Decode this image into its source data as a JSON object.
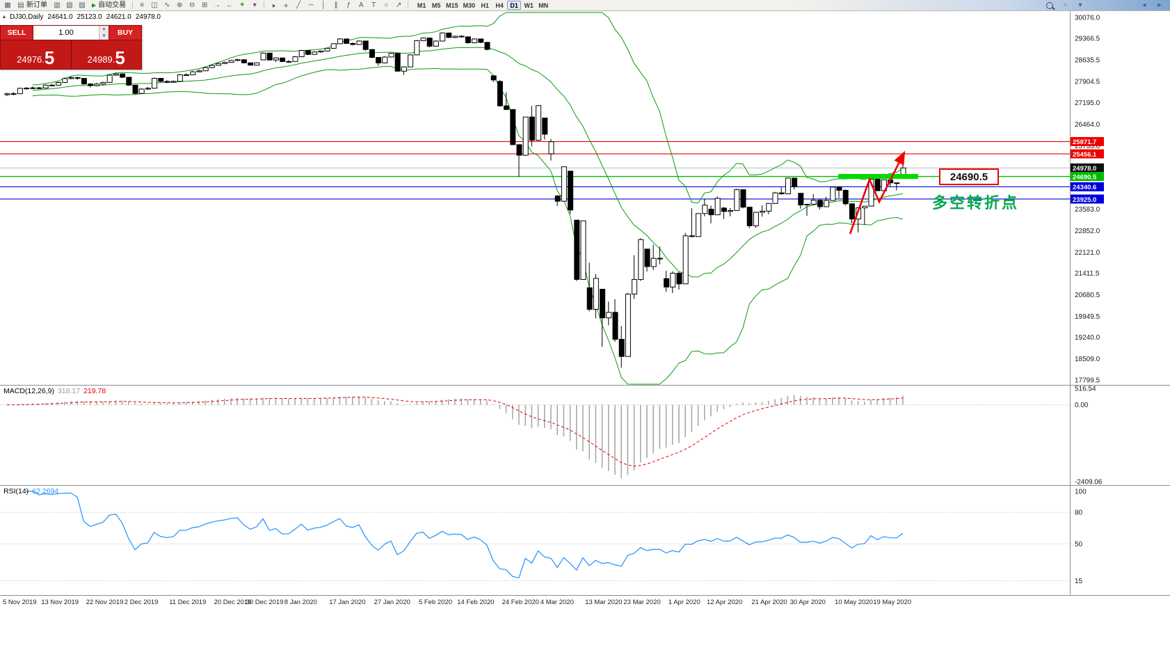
{
  "toolbar": {
    "new_order_label": "新订单",
    "autotrading_label": "自动交易",
    "timeframes": [
      "M1",
      "M5",
      "M15",
      "M30",
      "H1",
      "H4",
      "D1",
      "W1",
      "MN"
    ],
    "active_timeframe": "D1"
  },
  "symbol_info": {
    "title": "DJ30,Daily",
    "open": "24641.0",
    "high": "25123.0",
    "low": "24621.0",
    "close": "24978.0"
  },
  "trade_panel": {
    "sell_label": "SELL",
    "buy_label": "BUY",
    "volume": "1.00",
    "sell_price_int": "24976.",
    "sell_price_frac": "5",
    "buy_price_int": "24989.",
    "buy_price_frac": "5"
  },
  "price_axis": {
    "labels": [
      {
        "text": "30076.0",
        "price": 30076.0
      },
      {
        "text": "29366.5",
        "price": 29366.5
      },
      {
        "text": "28635.5",
        "price": 28635.5
      },
      {
        "text": "27904.5",
        "price": 27904.5
      },
      {
        "text": "27195.0",
        "price": 27195.0
      },
      {
        "text": "26464.0",
        "price": 26464.0
      },
      {
        "text": "25733.0",
        "price": 25733.0
      },
      {
        "text": "23583.0",
        "price": 23583.0
      },
      {
        "text": "22852.0",
        "price": 22852.0
      },
      {
        "text": "22121.0",
        "price": 22121.0
      },
      {
        "text": "21411.5",
        "price": 21411.5
      },
      {
        "text": "20680.5",
        "price": 20680.5
      },
      {
        "text": "19949.5",
        "price": 19949.5
      },
      {
        "text": "19240.0",
        "price": 19240.0
      },
      {
        "text": "18509.0",
        "price": 18509.0
      },
      {
        "text": "17799.5",
        "price": 17799.5
      }
    ],
    "tags": [
      {
        "text": "25871.7",
        "price": 25871.7,
        "bg": "#ee0000",
        "line": "#ee0000"
      },
      {
        "text": "25456.1",
        "price": 25456.1,
        "bg": "#ee0000",
        "line": "#ee0000"
      },
      {
        "text": "24978.0",
        "price": 24978.0,
        "bg": "#101010",
        "line": "#c0c0c0"
      },
      {
        "text": "24690.5",
        "price": 24690.5,
        "bg": "#00bb00",
        "line": "#00bb00"
      },
      {
        "text": "24340.6",
        "price": 24340.6,
        "bg": "#0000dd",
        "line": "#0000dd"
      },
      {
        "text": "23925.0",
        "price": 23925.0,
        "bg": "#0000dd",
        "line": "#0000dd"
      }
    ]
  },
  "annotations": {
    "level_label": "24690.5",
    "turning_point_text": "多空转折点"
  },
  "macd_panel": {
    "name": "MACD(12,26,9)",
    "macd_value": "318.17",
    "signal_value": "219.78",
    "axis": [
      {
        "text": "516.54",
        "value": 516.54
      },
      {
        "text": "0.00",
        "value": 0
      },
      {
        "text": "-2409.06",
        "value": -2409.06
      }
    ]
  },
  "rsi_panel": {
    "name": "RSI(14)",
    "value": "62.2694",
    "levels": [
      80,
      50,
      15
    ],
    "axis": [
      {
        "text": "100",
        "value": 100
      },
      {
        "text": "80",
        "value": 80
      },
      {
        "text": "50",
        "value": 50
      },
      {
        "text": "15",
        "value": 15
      }
    ]
  },
  "chart_data": {
    "type": "candlestick",
    "symbol": "DJ30",
    "timeframe": "Daily",
    "grid": false,
    "visible_price_range": [
      17630,
      30290
    ],
    "last_ohlc": {
      "open": 24641.0,
      "high": 25123.0,
      "low": 24621.0,
      "close": 24978.0
    },
    "key_levels": {
      "resistance": [
        25871.7,
        25456.1
      ],
      "last_price": 24978.0,
      "support_zone": 24690.5,
      "supports": [
        24340.6,
        23925.0
      ]
    },
    "overlays": [
      {
        "name": "Bollinger Bands",
        "period": 20,
        "deviation": 2,
        "color": "#0a9a0a"
      }
    ],
    "sub_indicators": [
      {
        "name": "MACD",
        "params": [
          12,
          26,
          9
        ],
        "current": [
          318.17,
          219.78
        ],
        "range": [
          -2409.06,
          516.54
        ]
      },
      {
        "name": "RSI",
        "params": [
          14
        ],
        "current": 62.2694,
        "range": [
          0,
          100
        ]
      }
    ],
    "date_labels": [
      {
        "t": "5 Nov 2019",
        "i": 0
      },
      {
        "t": "13 Nov 2019",
        "i": 6
      },
      {
        "t": "22 Nov 2019",
        "i": 13
      },
      {
        "t": "2 Dec 2019",
        "i": 19
      },
      {
        "t": "11 Dec 2019",
        "i": 26
      },
      {
        "t": "20 Dec 2019",
        "i": 33
      },
      {
        "t": "30 Dec 2019",
        "i": 38
      },
      {
        "t": "8 Jan 2020",
        "i": 44
      },
      {
        "t": "17 Jan 2020",
        "i": 51
      },
      {
        "t": "27 Jan 2020",
        "i": 58
      },
      {
        "t": "5 Feb 2020",
        "i": 65
      },
      {
        "t": "14 Feb 2020",
        "i": 71
      },
      {
        "t": "24 Feb 2020",
        "i": 78
      },
      {
        "t": "4 Mar 2020",
        "i": 84
      },
      {
        "t": "13 Mar 2020",
        "i": 91
      },
      {
        "t": "23 Mar 2020",
        "i": 97
      },
      {
        "t": "1 Apr 2020",
        "i": 104
      },
      {
        "t": "12 Apr 2020",
        "i": 110
      },
      {
        "t": "21 Apr 2020",
        "i": 117
      },
      {
        "t": "30 Apr 2020",
        "i": 123
      },
      {
        "t": "10 May 2020",
        "i": 130
      },
      {
        "t": "19 May 2020",
        "i": 136
      }
    ],
    "candles": [
      [
        27460,
        27520,
        27410,
        27492
      ],
      [
        27492,
        27550,
        27440,
        27493
      ],
      [
        27493,
        27700,
        27480,
        27675
      ],
      [
        27675,
        27720,
        27630,
        27681
      ],
      [
        27681,
        27740,
        27650,
        27691
      ],
      [
        27691,
        27730,
        27640,
        27684
      ],
      [
        27684,
        27810,
        27670,
        27784
      ],
      [
        27784,
        27820,
        27740,
        27782
      ],
      [
        27782,
        27900,
        27770,
        27872
      ],
      [
        27872,
        28040,
        27860,
        28005
      ],
      [
        28005,
        28090,
        27980,
        28036
      ],
      [
        28036,
        28070,
        27960,
        28012
      ],
      [
        28012,
        28020,
        27800,
        27822
      ],
      [
        27822,
        27850,
        27700,
        27767
      ],
      [
        27767,
        27860,
        27740,
        27822
      ],
      [
        27822,
        27900,
        27790,
        27876
      ],
      [
        27876,
        28150,
        27860,
        28121
      ],
      [
        28121,
        28200,
        28100,
        28164
      ],
      [
        28164,
        28180,
        28020,
        28051
      ],
      [
        28051,
        28060,
        27760,
        27783
      ],
      [
        27783,
        27800,
        27460,
        27503
      ],
      [
        27503,
        27680,
        27480,
        27650
      ],
      [
        27650,
        27720,
        27620,
        27678
      ],
      [
        27678,
        28040,
        27660,
        28015
      ],
      [
        28015,
        28030,
        27880,
        27910
      ],
      [
        27910,
        27950,
        27850,
        27882
      ],
      [
        27882,
        27940,
        27860,
        27912
      ],
      [
        27912,
        28160,
        27900,
        28132
      ],
      [
        28132,
        28180,
        28100,
        28135
      ],
      [
        28135,
        28270,
        28120,
        28235
      ],
      [
        28235,
        28300,
        28220,
        28268
      ],
      [
        28268,
        28410,
        28260,
        28377
      ],
      [
        28377,
        28480,
        28360,
        28455
      ],
      [
        28455,
        28540,
        28440,
        28515
      ],
      [
        28515,
        28580,
        28500,
        28552
      ],
      [
        28552,
        28640,
        28540,
        28617
      ],
      [
        28617,
        28680,
        28600,
        28645
      ],
      [
        28645,
        28660,
        28520,
        28538
      ],
      [
        28538,
        28550,
        28440,
        28462
      ],
      [
        28462,
        28560,
        28450,
        28538
      ],
      [
        28638,
        28890,
        28630,
        28869
      ],
      [
        28869,
        28880,
        28620,
        28635
      ],
      [
        28635,
        28720,
        28560,
        28704
      ],
      [
        28704,
        28710,
        28560,
        28584
      ],
      [
        28584,
        28630,
        28540,
        28583
      ],
      [
        28583,
        28770,
        28570,
        28745
      ],
      [
        28745,
        28980,
        28730,
        28957
      ],
      [
        28957,
        28970,
        28800,
        28824
      ],
      [
        28824,
        28930,
        28810,
        28907
      ],
      [
        28907,
        28960,
        28880,
        28939
      ],
      [
        28939,
        29050,
        28920,
        29030
      ],
      [
        29030,
        29200,
        29020,
        29186
      ],
      [
        29186,
        29370,
        29170,
        29348
      ],
      [
        29348,
        29360,
        29180,
        29196
      ],
      [
        29196,
        29230,
        29130,
        29160
      ],
      [
        29160,
        29300,
        29140,
        29278
      ],
      [
        29278,
        29290,
        28950,
        28990
      ],
      [
        28990,
        29000,
        28700,
        28723
      ],
      [
        28723,
        28730,
        28440,
        28536
      ],
      [
        28536,
        28760,
        28520,
        28735
      ],
      [
        28735,
        28880,
        28720,
        28859
      ],
      [
        28859,
        28870,
        28240,
        28256
      ],
      [
        28256,
        28420,
        28130,
        28400
      ],
      [
        28400,
        28830,
        28390,
        28808
      ],
      [
        28808,
        29310,
        28800,
        29290
      ],
      [
        29290,
        29400,
        29280,
        29380
      ],
      [
        29380,
        29390,
        29060,
        29103
      ],
      [
        29103,
        29300,
        29090,
        29277
      ],
      [
        29277,
        29570,
        29260,
        29551
      ],
      [
        29551,
        29560,
        29380,
        29398
      ],
      [
        29398,
        29460,
        29370,
        29440
      ],
      [
        29440,
        29480,
        29400,
        29420
      ],
      [
        29420,
        29430,
        29190,
        29220
      ],
      [
        29220,
        29370,
        29200,
        29348
      ],
      [
        29348,
        29360,
        29210,
        29232
      ],
      [
        29232,
        29250,
        28960,
        28993
      ],
      [
        28100,
        28110,
        27890,
        27960
      ],
      [
        27910,
        27950,
        27060,
        27081
      ],
      [
        27081,
        27540,
        26940,
        26958
      ],
      [
        26958,
        26960,
        25750,
        25767
      ],
      [
        25767,
        25770,
        24680,
        25409
      ],
      [
        25409,
        26700,
        25390,
        26703
      ],
      [
        26703,
        27080,
        25710,
        25917
      ],
      [
        25917,
        27100,
        25900,
        27090
      ],
      [
        26670,
        26670,
        25940,
        26121
      ],
      [
        25460,
        25960,
        25230,
        25865
      ],
      [
        24030,
        24060,
        23690,
        23851
      ],
      [
        23851,
        25020,
        23840,
        25018
      ],
      [
        24870,
        24880,
        23420,
        23553
      ],
      [
        23210,
        23210,
        21150,
        21201
      ],
      [
        21201,
        23190,
        21190,
        23186
      ],
      [
        20920,
        21770,
        20120,
        20189
      ],
      [
        20189,
        21380,
        19880,
        21237
      ],
      [
        20870,
        20870,
        18920,
        19899
      ],
      [
        19899,
        20450,
        19650,
        20087
      ],
      [
        20087,
        20530,
        19090,
        19174
      ],
      [
        19174,
        19620,
        18210,
        18592
      ],
      [
        18592,
        20740,
        18590,
        20705
      ],
      [
        20705,
        22020,
        20540,
        21200
      ],
      [
        21200,
        22600,
        21150,
        22552
      ],
      [
        22230,
        22230,
        21470,
        21637
      ],
      [
        21637,
        22380,
        21520,
        21917
      ],
      [
        21917,
        22310,
        21720,
        21918
      ],
      [
        21230,
        21490,
        20780,
        20944
      ],
      [
        20944,
        21480,
        20740,
        21413
      ],
      [
        21413,
        21460,
        20860,
        21052
      ],
      [
        21052,
        22780,
        21050,
        22680
      ],
      [
        22680,
        23620,
        22630,
        22654
      ],
      [
        22654,
        23440,
        22650,
        23434
      ],
      [
        23434,
        23930,
        23340,
        23719
      ],
      [
        23580,
        23700,
        23100,
        23391
      ],
      [
        23391,
        24010,
        23390,
        23949
      ],
      [
        23620,
        23660,
        23250,
        23504
      ],
      [
        23504,
        23620,
        23340,
        23537
      ],
      [
        23537,
        24270,
        23530,
        24242
      ],
      [
        24242,
        24250,
        23610,
        23650
      ],
      [
        23650,
        23660,
        22940,
        23019
      ],
      [
        23019,
        23490,
        22950,
        23476
      ],
      [
        23476,
        23710,
        23330,
        23515
      ],
      [
        23515,
        23790,
        23410,
        23775
      ],
      [
        23775,
        24170,
        23770,
        24134
      ],
      [
        24134,
        24330,
        24070,
        24102
      ],
      [
        24102,
        24650,
        24100,
        24634
      ],
      [
        24634,
        24640,
        24250,
        24346
      ],
      [
        24120,
        24120,
        23600,
        23724
      ],
      [
        23724,
        23760,
        23360,
        23749
      ],
      [
        23749,
        24090,
        23740,
        23883
      ],
      [
        23883,
        23940,
        23570,
        23665
      ],
      [
        23665,
        24000,
        23660,
        23876
      ],
      [
        23876,
        24350,
        23870,
        24331
      ],
      [
        24331,
        24340,
        23960,
        24222
      ],
      [
        24222,
        24250,
        23710,
        23765
      ],
      [
        23765,
        23780,
        23100,
        23248
      ],
      [
        23248,
        23640,
        22790,
        23626
      ],
      [
        23626,
        23690,
        23050,
        23685
      ],
      [
        23685,
        24600,
        23680,
        24597
      ],
      [
        24597,
        24600,
        24190,
        24207
      ],
      [
        24207,
        24580,
        24200,
        24576
      ],
      [
        24576,
        24600,
        24340,
        24474
      ],
      [
        24474,
        24480,
        24220,
        24465
      ],
      [
        24641,
        25123,
        24621,
        24978
      ]
    ]
  }
}
